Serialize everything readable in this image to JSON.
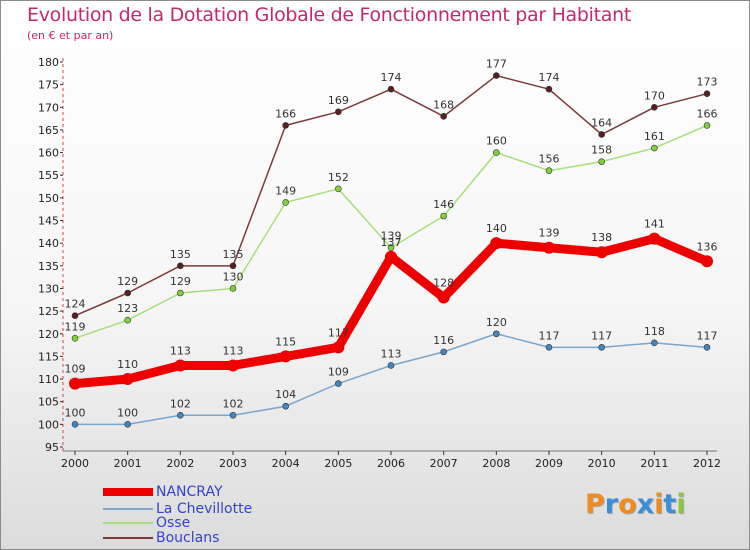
{
  "title": "Evolution de la Dotation Globale de Fonctionnement par Habitant",
  "subtitle": "(en € et par an)",
  "logo": {
    "text": "Proxiti",
    "letter_colors": [
      "#f08c1e",
      "#3a8fd8",
      "#f08c1e",
      "#3a8fd8",
      "#f08c1e",
      "#3a8fd8",
      "#8cc63f"
    ]
  },
  "chart_data": {
    "type": "line",
    "title": "Evolution de la Dotation Globale de Fonctionnement par Habitant",
    "subtitle": "(en € et par an)",
    "xlabel": "",
    "ylabel": "",
    "categories": [
      "2000",
      "2001",
      "2002",
      "2003",
      "2004",
      "2005",
      "2006",
      "2007",
      "2008",
      "2009",
      "2010",
      "2011",
      "2012"
    ],
    "ylim": [
      95,
      180
    ],
    "ytick_step": 5,
    "grid": false,
    "legend_position": "bottom-left",
    "series": [
      {
        "name": "NANCRAY",
        "color": "#ee0000",
        "point_color": "#ee0000",
        "width": 9,
        "labels_below": false,
        "values": [
          109,
          110,
          113,
          113,
          115,
          117,
          137,
          128,
          140,
          139,
          138,
          141,
          136
        ]
      },
      {
        "name": "La Chevillotte",
        "color": "#7aa6cc",
        "point_color": "#3f88c5",
        "width": 1.5,
        "labels_below": false,
        "values": [
          100,
          100,
          102,
          102,
          104,
          109,
          113,
          116,
          120,
          117,
          117,
          118,
          117
        ]
      },
      {
        "name": "Osse",
        "color": "#a6e07a",
        "point_color": "#7ed23a",
        "width": 1.5,
        "labels_below": false,
        "values": [
          119,
          123,
          129,
          130,
          149,
          152,
          139,
          146,
          160,
          156,
          158,
          161,
          166
        ]
      },
      {
        "name": "Bouclans",
        "color": "#7a3a3a",
        "point_color": "#5a1e1e",
        "width": 1.5,
        "labels_below": false,
        "values": [
          124,
          129,
          135,
          135,
          166,
          169,
          174,
          168,
          177,
          174,
          164,
          170,
          173
        ]
      }
    ]
  }
}
